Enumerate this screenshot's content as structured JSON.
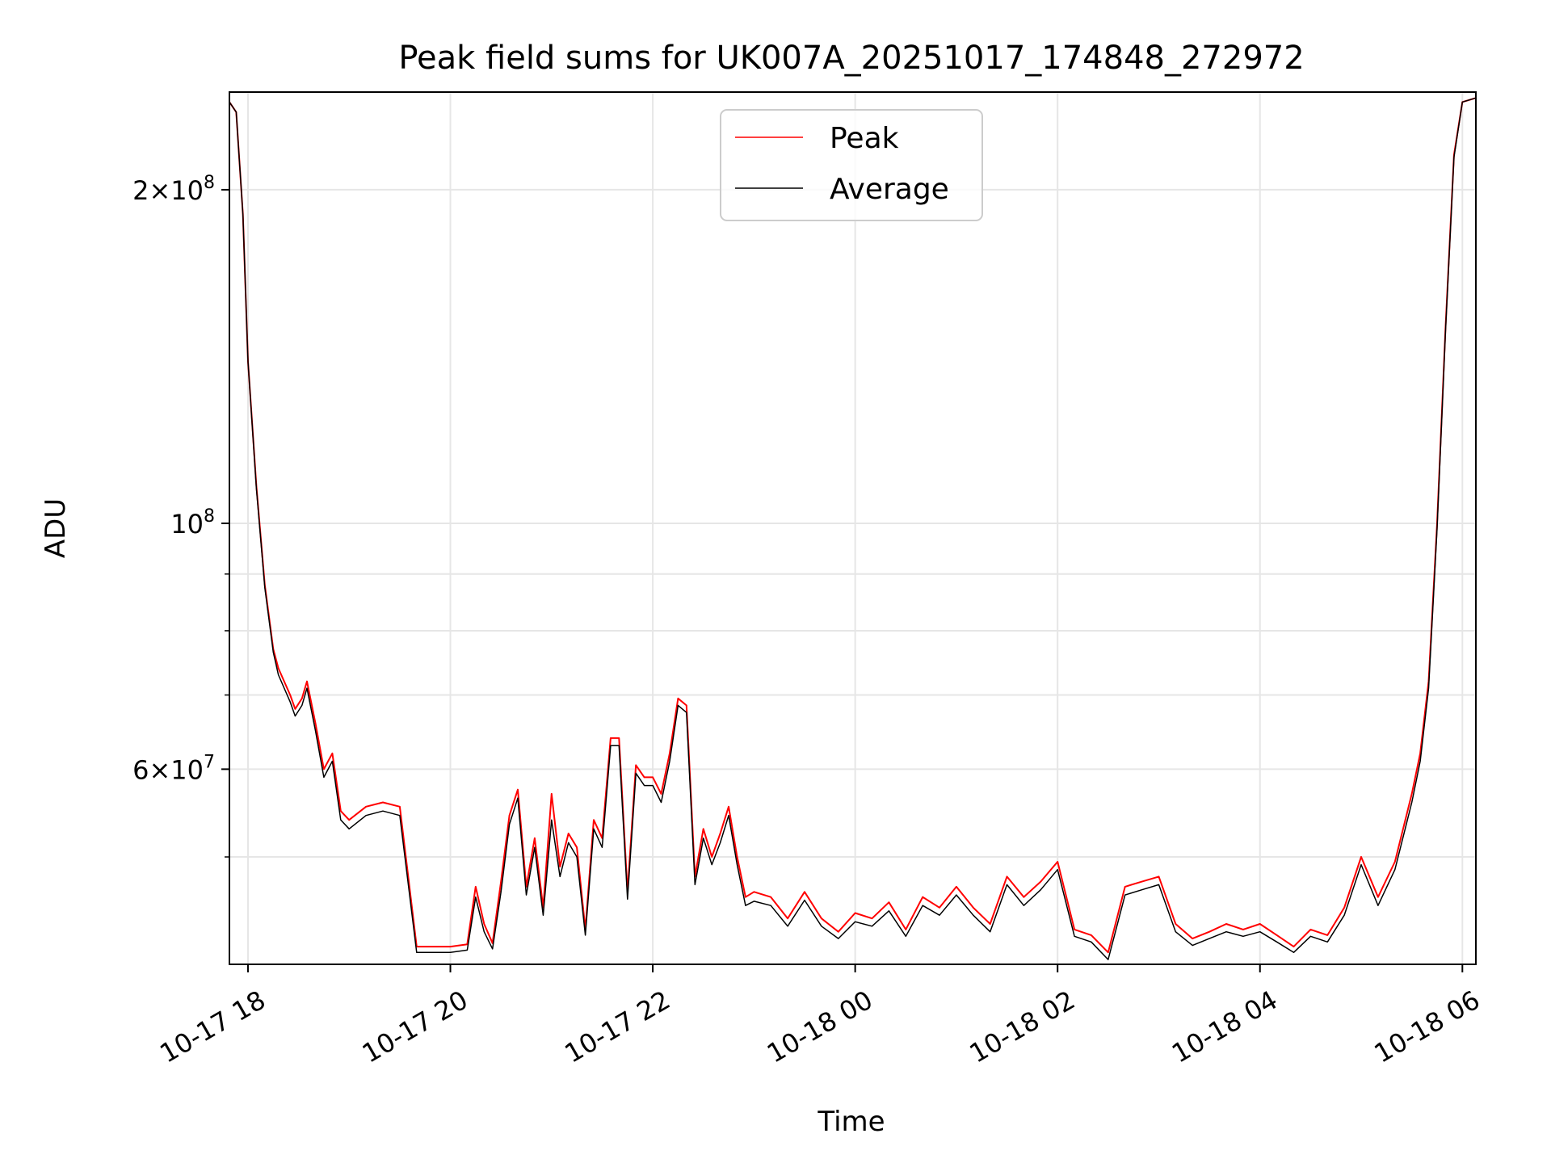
{
  "chart_data": {
    "type": "line",
    "title": "Peak field sums for UK007A_20251017_174848_272972",
    "xlabel": "Time",
    "ylabel": "ADU",
    "yscale": "log",
    "xlim": [
      "2025-10-17T17:49",
      "2025-10-18T06:08"
    ],
    "ylim": [
      40000000,
      245000000
    ],
    "grid": true,
    "legend_position": "upper center",
    "x_ticks": [
      {
        "value": "2025-10-17T18:00",
        "label": "10-17 18"
      },
      {
        "value": "2025-10-17T20:00",
        "label": "10-17 20"
      },
      {
        "value": "2025-10-17T22:00",
        "label": "10-17 22"
      },
      {
        "value": "2025-10-18T00:00",
        "label": "10-18 00"
      },
      {
        "value": "2025-10-18T02:00",
        "label": "10-18 02"
      },
      {
        "value": "2025-10-18T04:00",
        "label": "10-18 04"
      },
      {
        "value": "2025-10-18T06:00",
        "label": "10-18 06"
      }
    ],
    "y_ticks": [
      {
        "value": 200000000,
        "mantissa": "2",
        "exponent": "8"
      },
      {
        "value": 100000000,
        "mantissa": "",
        "exponent": "8"
      },
      {
        "value": 60000000,
        "mantissa": "6",
        "exponent": "7"
      }
    ],
    "y_minor_ticks": [
      50000000,
      70000000,
      80000000,
      90000000
    ],
    "series": [
      {
        "name": "Peak",
        "color": "#ff0000",
        "x": [
          "2025-10-17T17:49",
          "2025-10-17T17:53",
          "2025-10-17T17:57",
          "2025-10-17T18:00",
          "2025-10-17T18:05",
          "2025-10-17T18:10",
          "2025-10-17T18:15",
          "2025-10-17T18:18",
          "2025-10-17T18:25",
          "2025-10-17T18:28",
          "2025-10-17T18:32",
          "2025-10-17T18:35",
          "2025-10-17T18:40",
          "2025-10-17T18:45",
          "2025-10-17T18:50",
          "2025-10-17T18:55",
          "2025-10-17T19:00",
          "2025-10-17T19:10",
          "2025-10-17T19:20",
          "2025-10-17T19:30",
          "2025-10-17T19:40",
          "2025-10-17T19:50",
          "2025-10-17T20:00",
          "2025-10-17T20:10",
          "2025-10-17T20:15",
          "2025-10-17T20:20",
          "2025-10-17T20:25",
          "2025-10-17T20:30",
          "2025-10-17T20:35",
          "2025-10-17T20:40",
          "2025-10-17T20:45",
          "2025-10-17T20:50",
          "2025-10-17T20:55",
          "2025-10-17T21:00",
          "2025-10-17T21:05",
          "2025-10-17T21:10",
          "2025-10-17T21:15",
          "2025-10-17T21:20",
          "2025-10-17T21:25",
          "2025-10-17T21:30",
          "2025-10-17T21:35",
          "2025-10-17T21:40",
          "2025-10-17T21:45",
          "2025-10-17T21:50",
          "2025-10-17T21:55",
          "2025-10-17T22:00",
          "2025-10-17T22:05",
          "2025-10-17T22:10",
          "2025-10-17T22:15",
          "2025-10-17T22:20",
          "2025-10-17T22:25",
          "2025-10-17T22:30",
          "2025-10-17T22:35",
          "2025-10-17T22:40",
          "2025-10-17T22:45",
          "2025-10-17T22:50",
          "2025-10-17T22:55",
          "2025-10-17T23:00",
          "2025-10-17T23:10",
          "2025-10-17T23:20",
          "2025-10-17T23:30",
          "2025-10-17T23:40",
          "2025-10-17T23:50",
          "2025-10-18T00:00",
          "2025-10-18T00:10",
          "2025-10-18T00:20",
          "2025-10-18T00:30",
          "2025-10-18T00:40",
          "2025-10-18T00:50",
          "2025-10-18T01:00",
          "2025-10-18T01:10",
          "2025-10-18T01:20",
          "2025-10-18T01:30",
          "2025-10-18T01:40",
          "2025-10-18T01:50",
          "2025-10-18T02:00",
          "2025-10-18T02:10",
          "2025-10-18T02:20",
          "2025-10-18T02:30",
          "2025-10-18T02:40",
          "2025-10-18T02:50",
          "2025-10-18T03:00",
          "2025-10-18T03:10",
          "2025-10-18T03:20",
          "2025-10-18T03:30",
          "2025-10-18T03:40",
          "2025-10-18T03:50",
          "2025-10-18T04:00",
          "2025-10-18T04:10",
          "2025-10-18T04:20",
          "2025-10-18T04:30",
          "2025-10-18T04:40",
          "2025-10-18T04:50",
          "2025-10-18T05:00",
          "2025-10-18T05:10",
          "2025-10-18T05:20",
          "2025-10-18T05:30",
          "2025-10-18T05:35",
          "2025-10-18T05:40",
          "2025-10-18T05:45",
          "2025-10-18T05:50",
          "2025-10-18T05:55",
          "2025-10-18T06:00",
          "2025-10-18T06:08"
        ],
        "y": [
          240000000,
          235000000,
          190000000,
          140000000,
          108000000,
          88000000,
          77000000,
          74000000,
          70000000,
          68000000,
          69500000,
          72000000,
          66000000,
          60000000,
          62000000,
          55000000,
          54000000,
          55500000,
          56000000,
          55500000,
          41500000,
          41500000,
          41500000,
          41700000,
          47000000,
          43500000,
          41800000,
          47500000,
          54500000,
          57500000,
          47000000,
          52000000,
          45000000,
          57000000,
          49000000,
          52500000,
          51000000,
          43000000,
          54000000,
          52000000,
          64000000,
          64000000,
          46500000,
          60500000,
          59000000,
          59000000,
          57000000,
          62000000,
          69500000,
          68500000,
          48000000,
          53000000,
          50000000,
          52500000,
          55500000,
          50000000,
          46000000,
          46500000,
          46000000,
          44000000,
          46500000,
          44000000,
          42800000,
          44500000,
          44000000,
          45500000,
          43000000,
          46000000,
          45000000,
          47000000,
          45000000,
          43500000,
          48000000,
          46000000,
          47500000,
          49500000,
          43000000,
          42500000,
          41000000,
          47000000,
          47500000,
          48000000,
          43500000,
          42200000,
          42800000,
          43500000,
          43000000,
          43500000,
          42500000,
          41500000,
          43000000,
          42500000,
          45000000,
          50000000,
          46000000,
          49500000,
          57000000,
          62000000,
          72000000,
          100000000,
          150000000,
          215000000,
          240000000,
          242000000
        ]
      },
      {
        "name": "Average",
        "color": "#000000",
        "x": [
          "2025-10-17T17:49",
          "2025-10-17T17:53",
          "2025-10-17T17:57",
          "2025-10-17T18:00",
          "2025-10-17T18:05",
          "2025-10-17T18:10",
          "2025-10-17T18:15",
          "2025-10-17T18:18",
          "2025-10-17T18:25",
          "2025-10-17T18:28",
          "2025-10-17T18:32",
          "2025-10-17T18:35",
          "2025-10-17T18:40",
          "2025-10-17T18:45",
          "2025-10-17T18:50",
          "2025-10-17T18:55",
          "2025-10-17T19:00",
          "2025-10-17T19:10",
          "2025-10-17T19:20",
          "2025-10-17T19:30",
          "2025-10-17T19:40",
          "2025-10-17T19:50",
          "2025-10-17T20:00",
          "2025-10-17T20:10",
          "2025-10-17T20:15",
          "2025-10-17T20:20",
          "2025-10-17T20:25",
          "2025-10-17T20:30",
          "2025-10-17T20:35",
          "2025-10-17T20:40",
          "2025-10-17T20:45",
          "2025-10-17T20:50",
          "2025-10-17T20:55",
          "2025-10-17T21:00",
          "2025-10-17T21:05",
          "2025-10-17T21:10",
          "2025-10-17T21:15",
          "2025-10-17T21:20",
          "2025-10-17T21:25",
          "2025-10-17T21:30",
          "2025-10-17T21:35",
          "2025-10-17T21:40",
          "2025-10-17T21:45",
          "2025-10-17T21:50",
          "2025-10-17T21:55",
          "2025-10-17T22:00",
          "2025-10-17T22:05",
          "2025-10-17T22:10",
          "2025-10-17T22:15",
          "2025-10-17T22:20",
          "2025-10-17T22:25",
          "2025-10-17T22:30",
          "2025-10-17T22:35",
          "2025-10-17T22:40",
          "2025-10-17T22:45",
          "2025-10-17T22:50",
          "2025-10-17T22:55",
          "2025-10-17T23:00",
          "2025-10-17T23:10",
          "2025-10-17T23:20",
          "2025-10-17T23:30",
          "2025-10-17T23:40",
          "2025-10-17T23:50",
          "2025-10-18T00:00",
          "2025-10-18T00:10",
          "2025-10-18T00:20",
          "2025-10-18T00:30",
          "2025-10-18T00:40",
          "2025-10-18T00:50",
          "2025-10-18T01:00",
          "2025-10-18T01:10",
          "2025-10-18T01:20",
          "2025-10-18T01:30",
          "2025-10-18T01:40",
          "2025-10-18T01:50",
          "2025-10-18T02:00",
          "2025-10-18T02:10",
          "2025-10-18T02:20",
          "2025-10-18T02:30",
          "2025-10-18T02:40",
          "2025-10-18T02:50",
          "2025-10-18T03:00",
          "2025-10-18T03:10",
          "2025-10-18T03:20",
          "2025-10-18T03:30",
          "2025-10-18T03:40",
          "2025-10-18T03:50",
          "2025-10-18T04:00",
          "2025-10-18T04:10",
          "2025-10-18T04:20",
          "2025-10-18T04:30",
          "2025-10-18T04:40",
          "2025-10-18T04:50",
          "2025-10-18T05:00",
          "2025-10-18T05:10",
          "2025-10-18T05:20",
          "2025-10-18T05:30",
          "2025-10-18T05:35",
          "2025-10-18T05:40",
          "2025-10-18T05:45",
          "2025-10-18T05:50",
          "2025-10-18T05:55",
          "2025-10-18T06:00",
          "2025-10-18T06:08"
        ],
        "y": [
          240000000,
          235000000,
          190000000,
          140000000,
          107500000,
          87500000,
          76500000,
          73000000,
          69000000,
          67000000,
          68500000,
          71000000,
          65000000,
          59000000,
          61000000,
          54000000,
          53000000,
          54500000,
          55000000,
          54500000,
          41000000,
          41000000,
          41000000,
          41200000,
          46000000,
          42800000,
          41300000,
          46500000,
          53500000,
          56500000,
          46200000,
          51000000,
          44300000,
          54000000,
          48000000,
          51500000,
          50000000,
          42500000,
          53000000,
          51000000,
          63000000,
          63000000,
          45800000,
          59500000,
          58000000,
          58000000,
          56000000,
          61000000,
          68500000,
          67500000,
          47200000,
          52000000,
          49200000,
          51500000,
          54500000,
          49200000,
          45200000,
          45600000,
          45200000,
          43300000,
          45700000,
          43300000,
          42200000,
          43700000,
          43300000,
          44700000,
          42400000,
          45200000,
          44300000,
          46200000,
          44300000,
          42800000,
          47200000,
          45200000,
          46700000,
          48700000,
          42400000,
          41900000,
          40400000,
          46200000,
          46700000,
          47200000,
          42800000,
          41600000,
          42200000,
          42800000,
          42400000,
          42800000,
          41900000,
          41000000,
          42400000,
          41900000,
          44300000,
          49200000,
          45200000,
          48700000,
          56000000,
          61000000,
          71000000,
          99000000,
          149000000,
          214000000,
          240000000,
          242000000
        ]
      }
    ]
  }
}
